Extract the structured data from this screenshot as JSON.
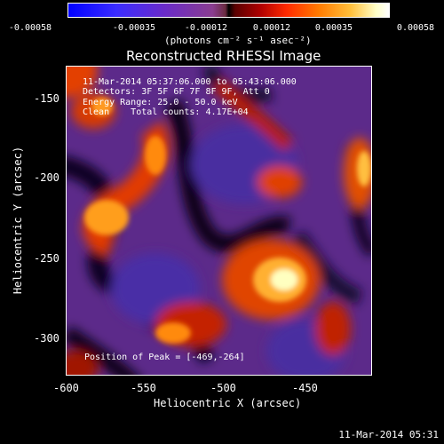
{
  "colorbar": {
    "tick_labels": [
      "-0.00058",
      "-0.00035",
      "-0.00012",
      "0.00012",
      "0.00035",
      "0.00058"
    ],
    "units_label": "(photons cm⁻² s⁻¹ asec⁻²)"
  },
  "plot": {
    "title": "Reconstructed RHESSI Image",
    "xlabel": "Heliocentric X (arcsec)",
    "ylabel": "Heliocentric Y (arcsec)",
    "x_ticks": [
      "-600",
      "-550",
      "-500",
      "-450"
    ],
    "y_ticks": [
      "-150",
      "-200",
      "-250",
      "-300"
    ],
    "info_lines": [
      "11-Mar-2014 05:37:06.000 to 05:43:06.000",
      "Detectors: 3F 5F 6F 7F 8F 9F, Att 0",
      "Energy Range: 25.0 - 50.0 keV",
      "Clean    Total counts: 4.17E+04"
    ],
    "peak_label": "Position of Peak = [-469,-264]",
    "timestamp": "11-Mar-2014 05:31"
  }
}
